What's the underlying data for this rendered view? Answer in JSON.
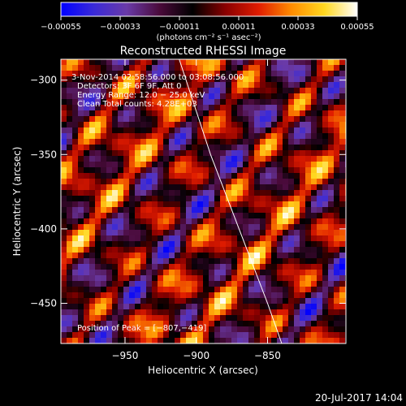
{
  "chart_data": {
    "type": "heatmap",
    "title": "Reconstructed RHESSI Image",
    "xlabel": "Heliocentric X (arcsec)",
    "ylabel": "Heliocentric Y (arcsec)",
    "xlim": [
      -995,
      -795
    ],
    "ylim": [
      -477,
      -286
    ],
    "x_ticks": [
      {
        "value": -950,
        "label": "−950"
      },
      {
        "value": -900,
        "label": "−900"
      },
      {
        "value": -850,
        "label": "−850"
      }
    ],
    "y_ticks": [
      {
        "value": -300,
        "label": "−300"
      },
      {
        "value": -350,
        "label": "−350"
      },
      {
        "value": -400,
        "label": "−400"
      },
      {
        "value": -450,
        "label": "−450"
      }
    ],
    "colorbar": {
      "min": -0.00055,
      "max": 0.00055,
      "ticks": [
        {
          "value": -0.00055,
          "label": "−0.00055"
        },
        {
          "value": -0.00033,
          "label": "−0.00033"
        },
        {
          "value": -0.00011,
          "label": "−0.00011"
        },
        {
          "value": 0.00011,
          "label": "0.00011"
        },
        {
          "value": 0.00033,
          "label": "0.00033"
        },
        {
          "value": 0.00055,
          "label": "0.00055"
        }
      ],
      "units": "(photons cm⁻² s⁻¹ asec⁻²)",
      "colors": [
        "#0000ff",
        "#3a2ad8",
        "#6a3aa8",
        "#4a0a3a",
        "#000000",
        "#8a0000",
        "#e01c00",
        "#ff8c00",
        "#ffd820",
        "#ffffff"
      ]
    },
    "limb_curve": [
      [
        -912,
        -286
      ],
      [
        -890,
        -350
      ],
      [
        -870,
        -400
      ],
      [
        -850,
        -450
      ],
      [
        -840,
        -477
      ]
    ],
    "peak": {
      "x": -807,
      "y": -419
    },
    "annotations": [
      "3-Nov-2014 02:58:56.000 to 03:08:56.000",
      "Detectors: 3F 6F 9F, Att 0",
      "Energy Range: 12.0 − 25.0 keV",
      "Clean    Total counts: 4.28E+03"
    ],
    "peak_label": "Position of Peak = [−807,−419]"
  },
  "footer": {
    "timestamp": "20-Jul-2017 14:04"
  }
}
